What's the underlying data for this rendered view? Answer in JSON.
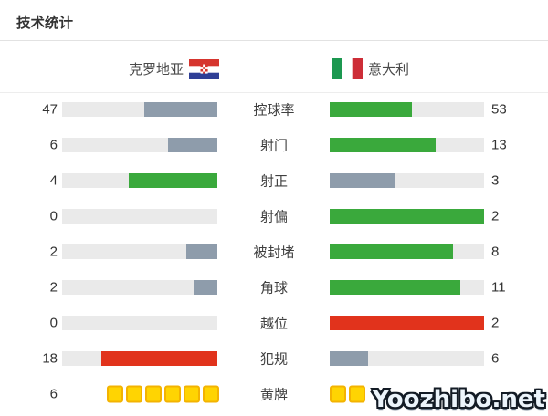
{
  "title": "技术统计",
  "header": {
    "home_team": "克罗地亚",
    "away_team": "意大利"
  },
  "colors": {
    "green": "#3aa93c",
    "gray": "#8e9cab",
    "red": "#e1331c",
    "track": "#eaeaea",
    "card_yellow": "#ffd402",
    "card_border": "#f3b301"
  },
  "rows": [
    {
      "label": "控球率",
      "home_value": "47",
      "away_value": "53",
      "home_color": "gray",
      "away_color": "green"
    },
    {
      "label": "射门",
      "home_value": "6",
      "away_value": "13",
      "home_color": "gray",
      "away_color": "green"
    },
    {
      "label": "射正",
      "home_value": "4",
      "away_value": "3",
      "home_color": "green",
      "away_color": "gray"
    },
    {
      "label": "射偏",
      "home_value": "0",
      "away_value": "2",
      "home_color": "gray",
      "away_color": "green"
    },
    {
      "label": "被封堵",
      "home_value": "2",
      "away_value": "8",
      "home_color": "gray",
      "away_color": "green"
    },
    {
      "label": "角球",
      "home_value": "2",
      "away_value": "11",
      "home_color": "gray",
      "away_color": "green"
    },
    {
      "label": "越位",
      "home_value": "0",
      "away_value": "2",
      "home_color": "gray",
      "away_color": "red"
    },
    {
      "label": "犯规",
      "home_value": "18",
      "away_value": "6",
      "home_color": "red",
      "away_color": "gray"
    }
  ],
  "cards_row": {
    "label": "黄牌",
    "home_value": "6",
    "home_cards": 6,
    "away_cards": 2
  },
  "watermark": "Yoozhibo.net",
  "chart_data": {
    "type": "bar",
    "title": "技术统计",
    "categories": [
      "控球率",
      "射门",
      "射正",
      "射偏",
      "被封堵",
      "角球",
      "越位",
      "犯规",
      "黄牌"
    ],
    "series": [
      {
        "name": "克罗地亚",
        "values": [
          47,
          6,
          4,
          0,
          2,
          2,
          0,
          18,
          6
        ]
      },
      {
        "name": "意大利",
        "values": [
          53,
          13,
          3,
          2,
          8,
          11,
          2,
          6,
          2
        ]
      }
    ],
    "layout": "paired horizontal bars, home fills right-aligned, away fills left-aligned, fill fraction = value/(home+away)",
    "color_rule": "green = better value, gray = worse value, red = high negative stat (offside/fouls), yellow cards drawn as yellow squares"
  }
}
